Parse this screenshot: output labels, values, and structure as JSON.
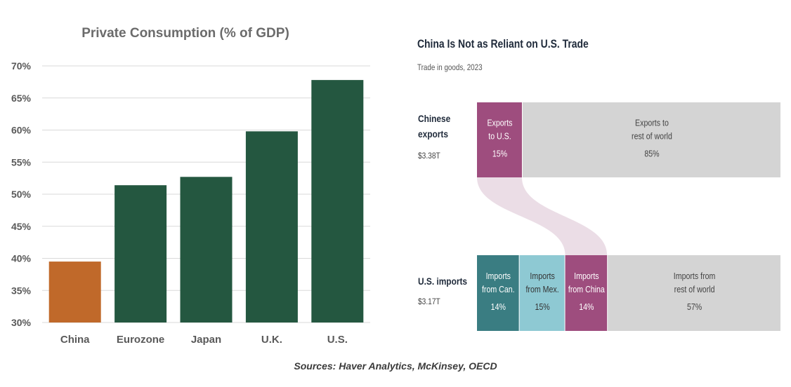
{
  "chart_data": [
    {
      "type": "bar",
      "title": "Private Consumption  (% of GDP)",
      "categories": [
        "China",
        "Eurozone",
        "Japan",
        "U.K.",
        "U.S."
      ],
      "values": [
        39.5,
        51.4,
        52.7,
        59.8,
        67.8
      ],
      "ylim": [
        30,
        70
      ],
      "yticks": [
        "30%",
        "35%",
        "40%",
        "45%",
        "50%",
        "55%",
        "60%",
        "65%",
        "70%"
      ],
      "grid": true,
      "colors": {
        "China": "#c0692a",
        "default": "#245740"
      }
    },
    {
      "type": "table",
      "title": "China Is Not as Reliant on U.S. Trade",
      "subtitle": "Trade in goods, 2023",
      "rows": [
        {
          "label_line1": "Chinese",
          "label_line2": "exports",
          "total": "$3.38T",
          "segments": [
            {
              "line1": "Exports",
              "line2": "to U.S.",
              "pct": "15%",
              "value": 15,
              "color": "#9e4d7e",
              "text_color": "#ffffff"
            },
            {
              "line1": "Exports to",
              "line2": "rest of world",
              "pct": "85%",
              "value": 85,
              "color": "#d4d4d4",
              "text_color": "#444444"
            }
          ]
        },
        {
          "label_line1": "U.S. imports",
          "label_line2": "",
          "total": "$3.17T",
          "segments": [
            {
              "line1": "Imports",
              "line2": "from Can.",
              "pct": "14%",
              "value": 14,
              "color": "#3a7d82",
              "text_color": "#ffffff"
            },
            {
              "line1": "Imports",
              "line2": "from Mex.",
              "pct": "15%",
              "value": 15,
              "color": "#8ec9d3",
              "text_color": "#333333"
            },
            {
              "line1": "Imports",
              "line2": "from China",
              "pct": "14%",
              "value": 14,
              "color": "#9e4d7e",
              "text_color": "#ffffff"
            },
            {
              "line1": "Imports from",
              "line2": "rest of world",
              "pct": "57%",
              "value": 57,
              "color": "#d4d4d4",
              "text_color": "#444444"
            }
          ]
        }
      ],
      "flow_color": "#ebdde6"
    }
  ],
  "footer": "Sources: Haver Analytics, McKinsey, OECD"
}
